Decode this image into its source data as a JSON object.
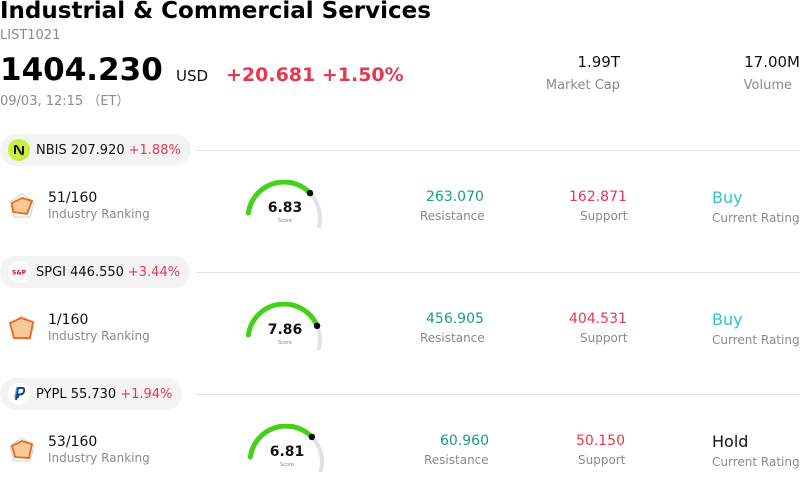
{
  "header": {
    "title": "Industrial & Commercial Services",
    "code": "LIST1021",
    "price": "1404.230",
    "currency": "USD",
    "change": "+20.681 +1.50%",
    "time": "09/03, 12:15 （ET）",
    "market_cap": {
      "value": "1.99T",
      "label": "Market Cap"
    },
    "volume": {
      "value": "17.00M",
      "label": "Volume"
    }
  },
  "stocks": [
    {
      "symbol": "NBIS 207.920",
      "change_pct": "+1.88%",
      "logo": "nbis-logo",
      "rank": "51/160",
      "rank_label": "Industry Ranking",
      "score": "6.83",
      "score_label": "Score",
      "score_value": 6.83,
      "resistance": "263.070",
      "resistance_label": "Resistance",
      "support": "162.871",
      "support_label": "Support",
      "rating": "Buy",
      "rating_label": "Current Rating",
      "rating_color": "#34c3c7"
    },
    {
      "symbol": "SPGI 446.550",
      "change_pct": "+3.44%",
      "logo": "spgi-logo",
      "rank": "1/160",
      "rank_label": "Industry Ranking",
      "score": "7.86",
      "score_label": "Score",
      "score_value": 7.86,
      "resistance": "456.905",
      "resistance_label": "Resistance",
      "support": "404.531",
      "support_label": "Support",
      "rating": "Buy",
      "rating_label": "Current Rating",
      "rating_color": "#34c3c7"
    },
    {
      "symbol": "PYPL 55.730",
      "change_pct": "+1.94%",
      "logo": "pypl-logo",
      "rank": "53/160",
      "rank_label": "Industry Ranking",
      "score": "6.81",
      "score_label": "Score",
      "score_value": 6.81,
      "resistance": "60.960",
      "resistance_label": "Resistance",
      "support": "50.150",
      "support_label": "Support",
      "rating": "Hold",
      "rating_label": "Current Rating",
      "rating_color": "#111111"
    }
  ],
  "colors": {
    "up": "#e53950",
    "resistance": "#1a9e80",
    "gauge_fill": "#44d11a",
    "gauge_track": "#e1e1e6"
  }
}
